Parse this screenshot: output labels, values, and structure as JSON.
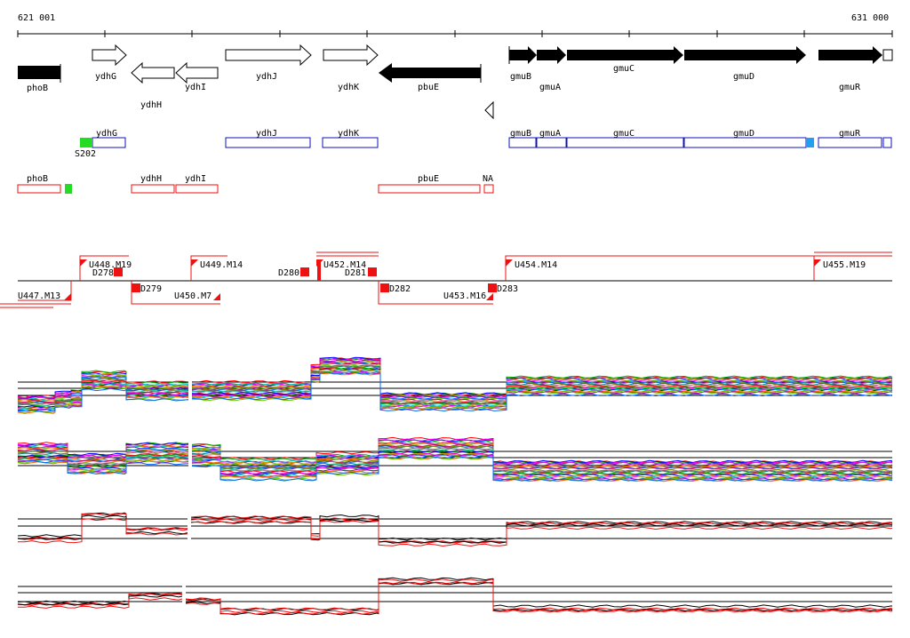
{
  "ruler": {
    "start_label": "621 001",
    "end_label": "631 000"
  },
  "genes_top": [
    {
      "label": "phoB"
    },
    {
      "label": "ydhG"
    },
    {
      "label": "ydhH"
    },
    {
      "label": "ydhI"
    },
    {
      "label": "ydhJ"
    },
    {
      "label": "ydhK"
    },
    {
      "label": "pbuE"
    },
    {
      "label": "gmuB"
    },
    {
      "label": "gmuA"
    },
    {
      "label": "gmuC"
    },
    {
      "label": "gmuD"
    },
    {
      "label": "gmuR"
    }
  ],
  "blue_features": [
    {
      "label": "ydhG"
    },
    {
      "label": "ydhJ"
    },
    {
      "label": "ydhK"
    },
    {
      "label": "gmuB"
    },
    {
      "label": "gmuA"
    },
    {
      "label": "gmuC"
    },
    {
      "label": "gmuD"
    },
    {
      "label": "gmuR"
    }
  ],
  "green_marker_label": "S202",
  "red_features": [
    {
      "label": "phoB"
    },
    {
      "label": "ydhH"
    },
    {
      "label": "ydhI"
    },
    {
      "label": "pbuE"
    },
    {
      "label": "NA"
    }
  ],
  "upstream_labels": [
    {
      "label": "U448.M19"
    },
    {
      "label": "U449.M14"
    },
    {
      "label": "U452.M14"
    },
    {
      "label": "U454.M14"
    },
    {
      "label": "U455.M19"
    }
  ],
  "downstream_labels": [
    {
      "label": "D278"
    },
    {
      "label": "D279"
    },
    {
      "label": "D280"
    },
    {
      "label": "D281"
    },
    {
      "label": "D282"
    },
    {
      "label": "D283"
    }
  ],
  "lower_labels": [
    {
      "label": "U447.M13"
    },
    {
      "label": "U450.M7"
    },
    {
      "label": "U453.M16"
    }
  ],
  "colors": {
    "gene": "#000000",
    "blue": "#1010c0",
    "red": "#ee1111",
    "green": "#22dd22",
    "cyan": "#22a0f0"
  }
}
